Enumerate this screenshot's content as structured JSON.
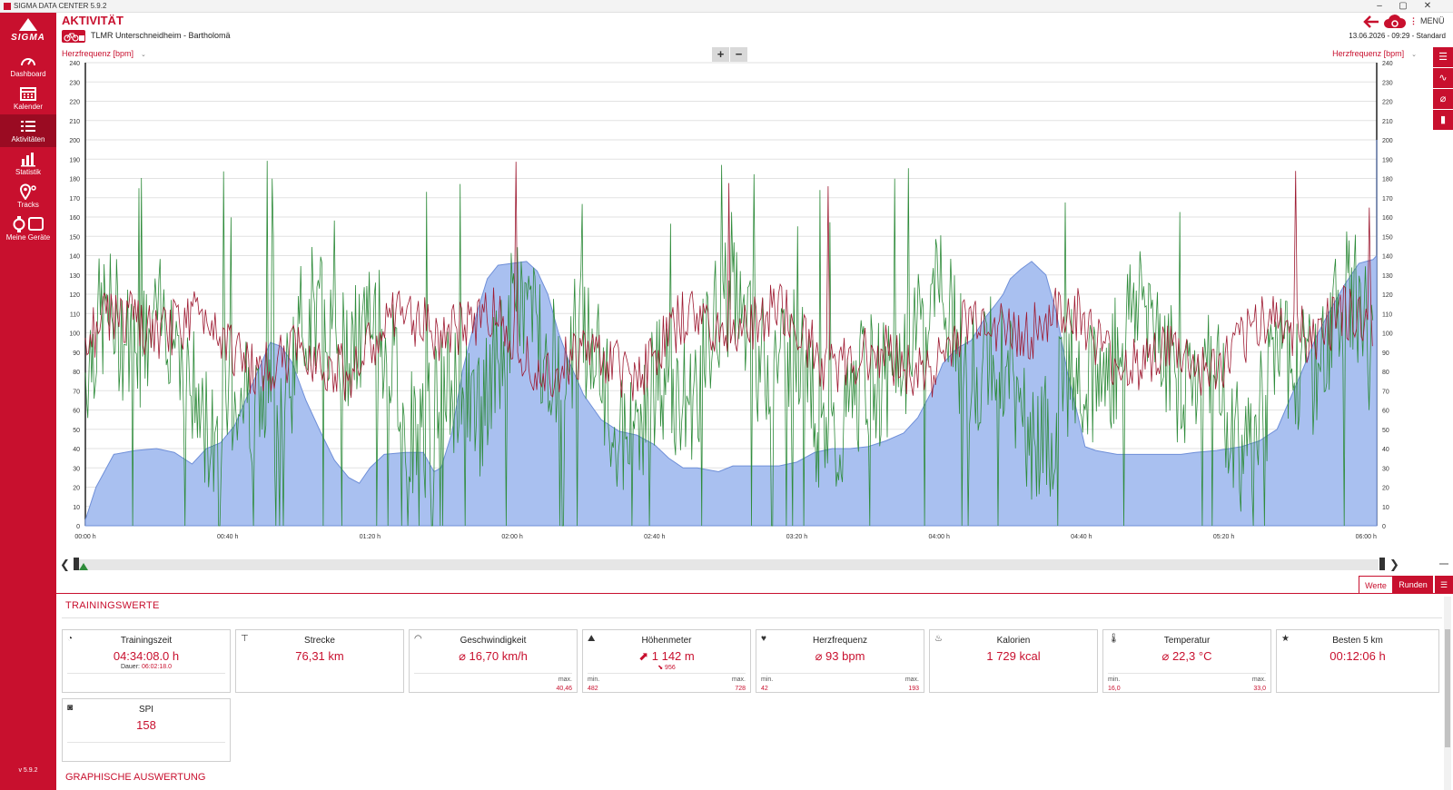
{
  "window": {
    "title": "SIGMA DATA CENTER 5.9.2",
    "min": "–",
    "max": "▢",
    "close": "✕"
  },
  "brand": {
    "logo_text": "SIGMA"
  },
  "sidebar": {
    "items": [
      {
        "label": "Dashboard",
        "icon": "gauge-icon"
      },
      {
        "label": "Kalender",
        "icon": "calendar-icon"
      },
      {
        "label": "Aktivitäten",
        "icon": "list-icon",
        "active": true
      },
      {
        "label": "Statistik",
        "icon": "bar-chart-icon"
      },
      {
        "label": "Tracks",
        "icon": "map-pin-icon"
      },
      {
        "label": "Meine Geräte",
        "icon": "devices-icon"
      }
    ],
    "version": "v 5.9.2"
  },
  "header": {
    "page_title": "AKTIVITÄT",
    "activity_name": "TLMR Unterschneidheim - Bartholomä",
    "menu_label": "MENÜ",
    "datetime": "13.06.2026  -  09:29  -  Standard"
  },
  "chart": {
    "left_axis_label": "Herzfrequenz [bpm]",
    "right_axis_label": "Herzfrequenz [bpm]",
    "zoom_in": "+",
    "zoom_out": "−"
  },
  "chart_data": {
    "type": "line",
    "xlabel": "",
    "ylabel": "Herzfrequenz [bpm]",
    "ylim": [
      0,
      240
    ],
    "yticks": [
      0,
      10,
      20,
      30,
      40,
      50,
      60,
      70,
      80,
      90,
      100,
      110,
      120,
      130,
      140,
      150,
      160,
      170,
      180,
      190,
      200,
      210,
      220,
      230,
      240
    ],
    "xlim_minutes": [
      0,
      363
    ],
    "xticks": [
      {
        "t": 0,
        "label": "00:00 h"
      },
      {
        "t": 40,
        "label": "00:40 h"
      },
      {
        "t": 80,
        "label": "01:20 h"
      },
      {
        "t": 120,
        "label": "02:00 h"
      },
      {
        "t": 160,
        "label": "02:40 h"
      },
      {
        "t": 200,
        "label": "03:20 h"
      },
      {
        "t": 240,
        "label": "04:00 h"
      },
      {
        "t": 280,
        "label": "04:40 h"
      },
      {
        "t": 320,
        "label": "05:20 h"
      },
      {
        "t": 360,
        "label": "06:00 h"
      }
    ],
    "grid": true,
    "series": [
      {
        "kind": "altitude-area",
        "color": "#a9c0f0",
        "points": [
          [
            0,
            3
          ],
          [
            3,
            20
          ],
          [
            8,
            37
          ],
          [
            14,
            39
          ],
          [
            20,
            40
          ],
          [
            25,
            38
          ],
          [
            30,
            32
          ],
          [
            34,
            40
          ],
          [
            38,
            43
          ],
          [
            42,
            52
          ],
          [
            48,
            78
          ],
          [
            52,
            95
          ],
          [
            55,
            93
          ],
          [
            58,
            85
          ],
          [
            62,
            65
          ],
          [
            66,
            49
          ],
          [
            70,
            34
          ],
          [
            74,
            25
          ],
          [
            77,
            22
          ],
          [
            80,
            30
          ],
          [
            84,
            37
          ],
          [
            90,
            38
          ],
          [
            95,
            38
          ],
          [
            98,
            28
          ],
          [
            100,
            30
          ],
          [
            103,
            48
          ],
          [
            106,
            80
          ],
          [
            110,
            110
          ],
          [
            113,
            128
          ],
          [
            116,
            135
          ],
          [
            120,
            136
          ],
          [
            124,
            137
          ],
          [
            127,
            132
          ],
          [
            130,
            120
          ],
          [
            133,
            100
          ],
          [
            136,
            85
          ],
          [
            140,
            68
          ],
          [
            145,
            55
          ],
          [
            150,
            49
          ],
          [
            155,
            47
          ],
          [
            160,
            42
          ],
          [
            164,
            35
          ],
          [
            168,
            30
          ],
          [
            172,
            30
          ],
          [
            178,
            28
          ],
          [
            182,
            31
          ],
          [
            195,
            31
          ],
          [
            200,
            33
          ],
          [
            205,
            38
          ],
          [
            210,
            40
          ],
          [
            215,
            40
          ],
          [
            220,
            41
          ],
          [
            225,
            44
          ],
          [
            230,
            48
          ],
          [
            234,
            56
          ],
          [
            238,
            70
          ],
          [
            241,
            84
          ],
          [
            245,
            92
          ],
          [
            249,
            96
          ],
          [
            253,
            108
          ],
          [
            256,
            115
          ],
          [
            258,
            120
          ],
          [
            260,
            128
          ],
          [
            263,
            133
          ],
          [
            266,
            137
          ],
          [
            270,
            130
          ],
          [
            273,
            110
          ],
          [
            276,
            80
          ],
          [
            279,
            57
          ],
          [
            281,
            41
          ],
          [
            284,
            39
          ],
          [
            290,
            37
          ],
          [
            300,
            37
          ],
          [
            308,
            37
          ],
          [
            312,
            38
          ],
          [
            318,
            39
          ],
          [
            325,
            41
          ],
          [
            330,
            44
          ],
          [
            335,
            50
          ],
          [
            338,
            63
          ],
          [
            342,
            80
          ],
          [
            346,
            98
          ],
          [
            350,
            112
          ],
          [
            354,
            125
          ],
          [
            358,
            136
          ],
          [
            362,
            138
          ],
          [
            364,
            140
          ],
          [
            367,
            150
          ],
          [
            370,
            170
          ],
          [
            373,
            185
          ],
          [
            376,
            192
          ],
          [
            379,
            200
          ],
          [
            382,
            191
          ],
          [
            386,
            182
          ],
          [
            390,
            172
          ],
          [
            394,
            160
          ],
          [
            398,
            150
          ],
          [
            402,
            152
          ],
          [
            406,
            155
          ],
          [
            409,
            152
          ]
        ]
      },
      {
        "kind": "heart-rate",
        "color": "#9e1b32",
        "points": []
      },
      {
        "kind": "speed",
        "color": "#2e8b3a",
        "points": []
      }
    ]
  },
  "scroller": {
    "prev": "❮",
    "next": "❯"
  },
  "tabs": {
    "werte": "Werte",
    "runden": "Runden",
    "list": "☰"
  },
  "training": {
    "title": "TRAININGSWERTE",
    "cards": [
      {
        "icon": "stopwatch-icon",
        "title": "Trainingszeit",
        "value": "04:34:08.0 h",
        "sub_label": "Dauer:",
        "sub_value": "06:02:18.0"
      },
      {
        "icon": "distance-icon",
        "title": "Strecke",
        "value": "76,31 km"
      },
      {
        "icon": "speedometer-icon",
        "title": "Geschwindigkeit",
        "value": "⌀ 16,70 km/h",
        "max_label": "max.",
        "max_value": "40,46"
      },
      {
        "icon": "mountain-icon",
        "title": "Höhenmeter",
        "value": "⬈ 1 142 m",
        "down": "⬊ 956",
        "min_label": "min.",
        "min_value": "482",
        "max_label": "max.",
        "max_value": "728"
      },
      {
        "icon": "heart-icon",
        "title": "Herzfrequenz",
        "value": "⌀ 93 bpm",
        "min_label": "min.",
        "min_value": "42",
        "max_label": "max.",
        "max_value": "193"
      },
      {
        "icon": "flame-icon",
        "title": "Kalorien",
        "value": "1 729 kcal"
      },
      {
        "icon": "thermometer-icon",
        "title": "Temperatur",
        "value": "⌀ 22,3 °C",
        "min_label": "min.",
        "min_value": "16,0",
        "max_label": "max.",
        "max_value": "33,0"
      },
      {
        "icon": "star-icon",
        "title": "Besten 5 km",
        "value": "00:12:06 h"
      },
      {
        "icon": "spi-icon",
        "title": "SPI",
        "value": "158"
      }
    ]
  },
  "graphic_section": {
    "title": "GRAPHISCHE AUSWERTUNG"
  }
}
